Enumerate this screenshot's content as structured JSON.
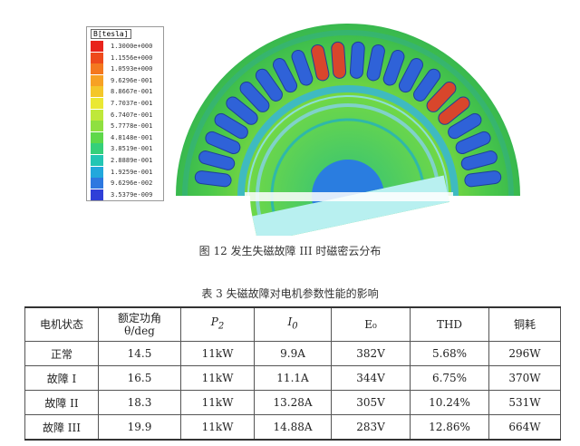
{
  "figure": {
    "legend_title": "B[tesla]",
    "legend_values": [
      "1.3000e+000",
      "1.1556e+000",
      "1.0593e+000",
      "9.6296e-001",
      "8.8667e-001",
      "7.7037e-001",
      "6.7407e-001",
      "5.7778e-001",
      "4.8148e-001",
      "3.8519e-001",
      "2.8889e-001",
      "1.9259e-001",
      "9.6296e-002",
      "3.5379e-009"
    ],
    "legend_colors": [
      "#e8231c",
      "#ee4a1c",
      "#f4781f",
      "#f7a124",
      "#f4c72a",
      "#eae833",
      "#bfe83a",
      "#8fe040",
      "#5ed84a",
      "#35d07a",
      "#22c6b4",
      "#22a8dc",
      "#2d78e0",
      "#2f3fd8"
    ],
    "caption": "图 12  发生失磁故障 III 时磁密云分布"
  },
  "table": {
    "caption": "表 3 失磁故障对电机参数性能的影响",
    "headers": {
      "state": "电机状态",
      "angle_line1": "额定功角",
      "angle_line2": "θ/deg",
      "p2_base": "P",
      "p2_sub": "2",
      "i0_base": "I",
      "i0_sub": "0",
      "e0": "E₀",
      "thd": "THD",
      "copper": "铜耗"
    },
    "rows": [
      [
        "正常",
        "14.5",
        "11kW",
        "9.9A",
        "382V",
        "5.68%",
        "296W"
      ],
      [
        "故障 I",
        "16.5",
        "11kW",
        "11.1A",
        "344V",
        "6.75%",
        "370W"
      ],
      [
        "故障 II",
        "18.3",
        "11kW",
        "13.28A",
        "305V",
        "10.24%",
        "531W"
      ],
      [
        "故障 III",
        "19.9",
        "11kW",
        "14.88A",
        "283V",
        "12.86%",
        "664W"
      ]
    ]
  }
}
